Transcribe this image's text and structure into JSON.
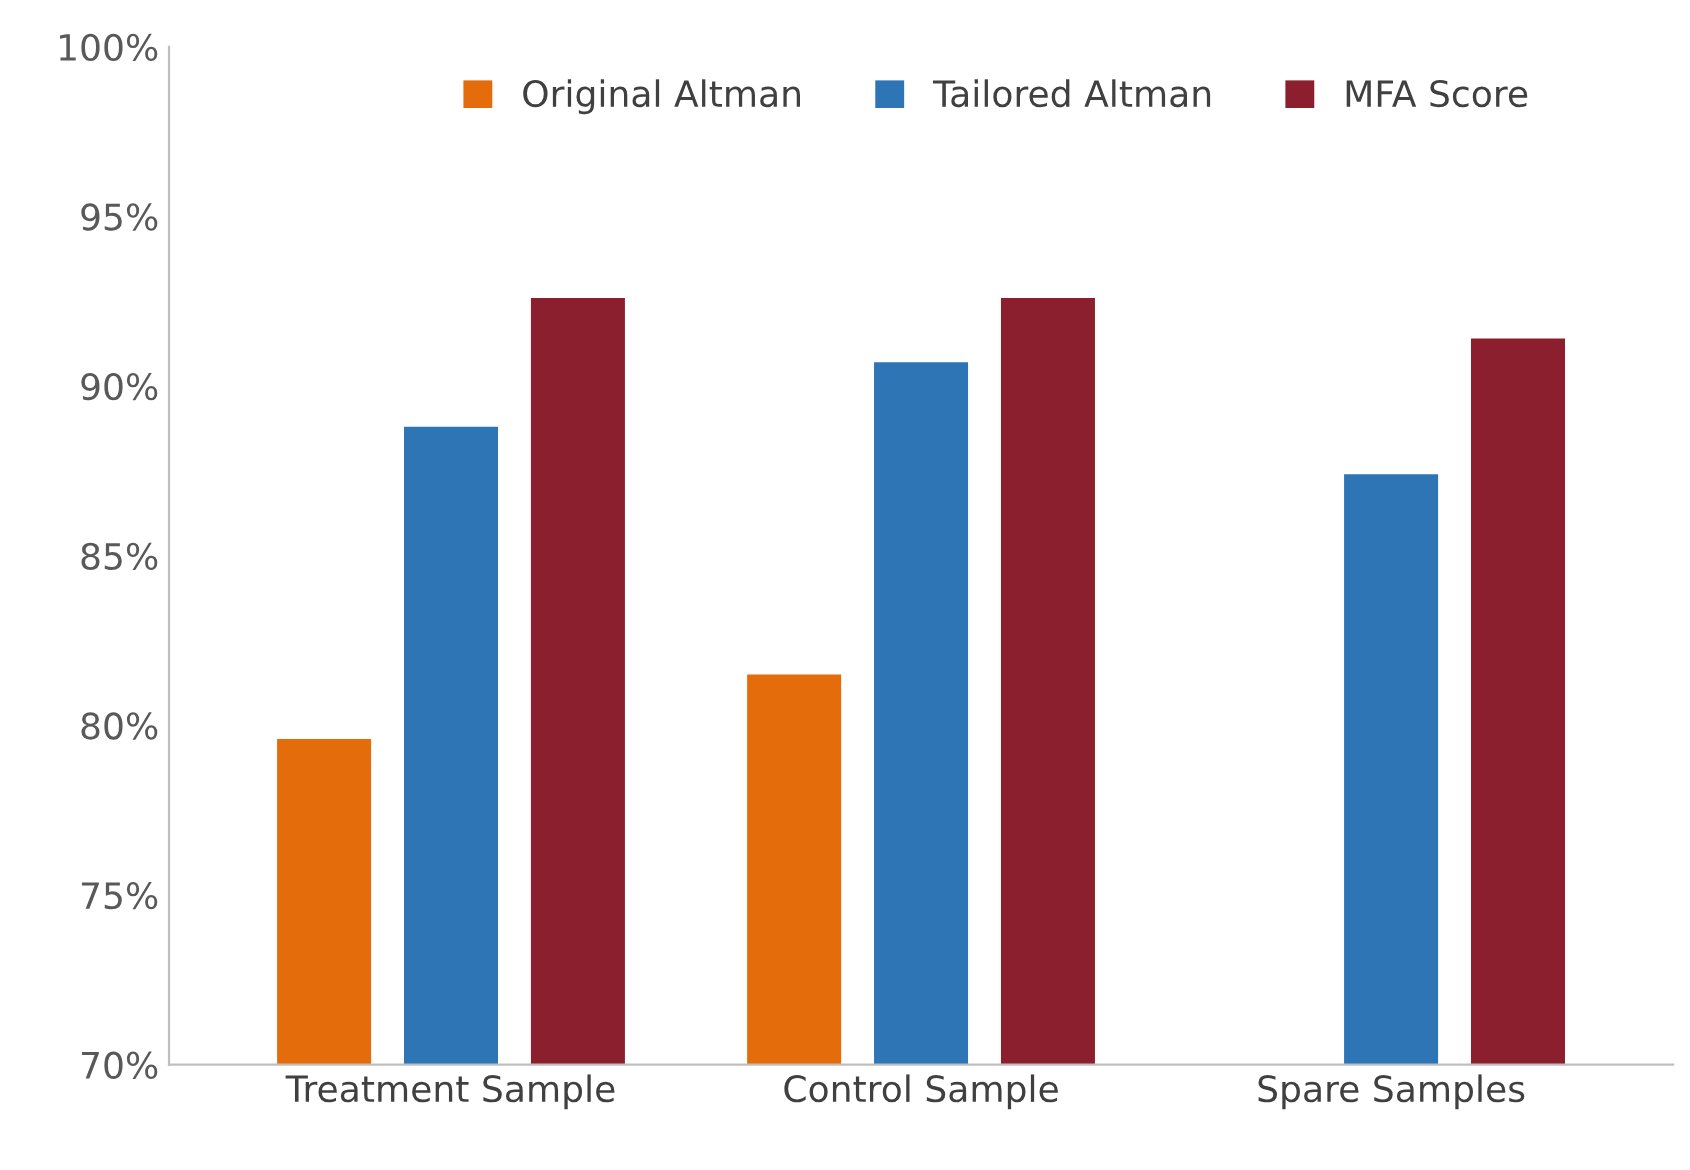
{
  "chart_data": {
    "type": "bar",
    "categories": [
      "Treatment Sample",
      "Control Sample",
      "Spare Samples"
    ],
    "series": [
      {
        "name": "Original Altman",
        "color": "#e46c0a",
        "values": [
          79.6,
          81.5,
          null
        ]
      },
      {
        "name": "Tailored Altman",
        "color": "#2e75b6",
        "values": [
          88.8,
          90.7,
          87.4
        ]
      },
      {
        "name": "MFA Score",
        "color": "#8b1f2e",
        "values": [
          92.6,
          92.6,
          91.4
        ]
      }
    ],
    "ylim": [
      70,
      100
    ],
    "yticks": [
      {
        "value": 70,
        "label": "70%"
      },
      {
        "value": 75,
        "label": "75%"
      },
      {
        "value": 80,
        "label": "80%"
      },
      {
        "value": 85,
        "label": "85%"
      },
      {
        "value": 90,
        "label": "90%"
      },
      {
        "value": 95,
        "label": "95%"
      },
      {
        "value": 100,
        "label": "100%"
      }
    ],
    "grid": false,
    "legend": "top"
  }
}
